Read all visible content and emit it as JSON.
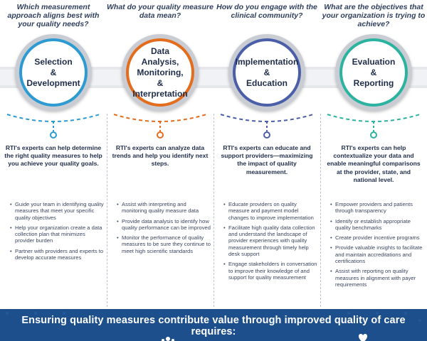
{
  "columns": [
    {
      "question": "Which measurement approach aligns best with your quality needs?",
      "title_lines": [
        "Selection",
        "&",
        "Development"
      ],
      "accent": "#2d9bd2",
      "lead": "RTI's experts can help determine the right quality measures to help you achieve your quality goals.",
      "bullets": [
        "Guide your team in identifying quality measures that meet your specific quality objectives",
        "Help your organization create a data collection plan that minimizes provider burden",
        "Partner with providers and experts to develop accurate measures"
      ]
    },
    {
      "question": "What do your quality measure data mean?",
      "title_lines": [
        "Data Analysis,",
        "Monitoring,",
        "&",
        "Interpretation"
      ],
      "accent": "#e36c1d",
      "lead": "RTI's experts can analyze data trends and help you identify next steps.",
      "bullets": [
        "Assist with interpreting and monitoring quality measure data",
        "Provide data analysis to identify how quality performance can be improved",
        "Monitor the performance of quality measures to be sure they continue to meet high scientific standards"
      ]
    },
    {
      "question": "How do you engage with the clinical community?",
      "title_lines": [
        "Implementation",
        "&",
        "Education"
      ],
      "accent": "#4b5fa8",
      "lead": "RTI's experts can educate and support providers—maximizing the impact of quality measurement.",
      "bullets": [
        "Educate providers on quality measure and payment model changes to improve implementation",
        "Facilitate high quality data collection and understand the landscape of provider experiences with quality measurement through timely help desk support",
        "Engage stakeholders in conversation to improve their knowledge of and support for quality measurement"
      ]
    },
    {
      "question": "What are the objectives that your organization is trying to achieve?",
      "title_lines": [
        "Evaluation",
        "&",
        "Reporting"
      ],
      "accent": "#2bb3a0",
      "lead": "RTI's experts can help contextualize your data and enable meaningful comparisons at the provider, state, and national level.",
      "bullets": [
        "Empower providers and patients through transparency",
        "Identify or establish appropriate quality benchmarks",
        "Create provider incentive programs",
        "Provide valuable insights to facilitate and maintain accreditations and certifications",
        "Assist with reporting on quality measures in alignment with payer requirements"
      ]
    }
  ],
  "banner": {
    "title": "Ensuring quality measures contribute value through improved quality of care requires:",
    "background": "#1c4f8c"
  }
}
